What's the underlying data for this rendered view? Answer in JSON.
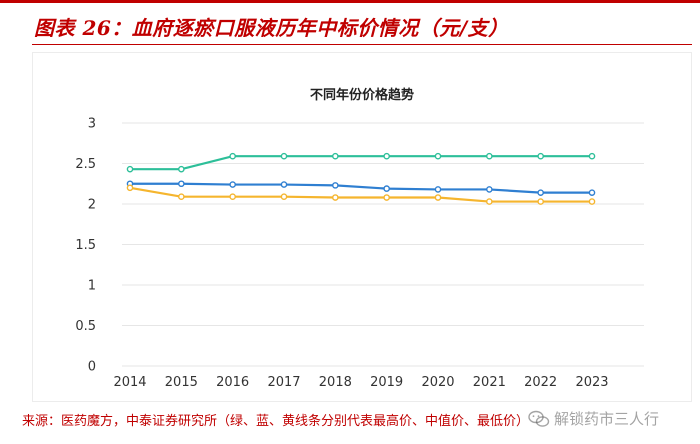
{
  "figure": {
    "title": "图表 26：血府逐瘀口服液历年中标价情况（元/支）",
    "source": "来源：医药魔方，中泰证券研究所（绿、蓝、黄线条分别代表最高价、中值价、最低价）",
    "watermark": "解锁药市三人行"
  },
  "colors": {
    "title_red": "#c00000",
    "series_high": "#2dbf99",
    "series_mid": "#2f7fd1",
    "series_low": "#f5b52e",
    "grid": "#e6e6e6",
    "axis_text": "#333333"
  },
  "chart_data": {
    "type": "line",
    "title": "不同年份价格趋势",
    "x": [
      "2014",
      "2015",
      "2016",
      "2017",
      "2018",
      "2019",
      "2020",
      "2021",
      "2022",
      "2023"
    ],
    "series": [
      {
        "name": "",
        "color_key": "series_high",
        "values": [
          2.43,
          2.43,
          2.59,
          2.59,
          2.59,
          2.59,
          2.59,
          2.59,
          2.59,
          2.59
        ]
      },
      {
        "name": "",
        "color_key": "series_mid",
        "values": [
          2.25,
          2.25,
          2.24,
          2.24,
          2.23,
          2.19,
          2.18,
          2.18,
          2.14,
          2.14
        ]
      },
      {
        "name": "",
        "color_key": "series_low",
        "values": [
          2.2,
          2.09,
          2.09,
          2.09,
          2.08,
          2.08,
          2.08,
          2.03,
          2.03,
          2.03
        ]
      }
    ],
    "ylim": [
      0,
      3
    ],
    "yticks": [
      "0",
      "0.5",
      "1",
      "1.5",
      "2",
      "2.5",
      "3"
    ],
    "ytick_values": [
      0,
      0.5,
      1,
      1.5,
      2,
      2.5,
      3
    ],
    "grid": true,
    "legend": "none"
  }
}
